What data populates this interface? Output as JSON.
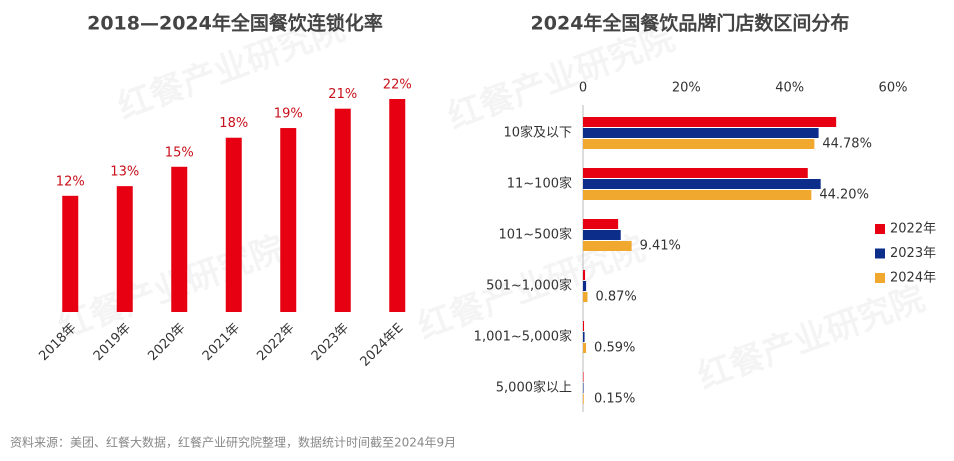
{
  "chart_data": [
    {
      "type": "bar",
      "title": "2018—2024年全国餐饮连锁化率",
      "categories": [
        "2018年",
        "2019年",
        "2020年",
        "2021年",
        "2022年",
        "2023年",
        "2024年E"
      ],
      "values": [
        12,
        13,
        15,
        18,
        19,
        21,
        22
      ],
      "value_labels": [
        "12%",
        "13%",
        "15%",
        "18%",
        "19%",
        "21%",
        "22%"
      ],
      "color": "#e60012"
    },
    {
      "type": "barh",
      "title": "2024年全国餐饮品牌门店数区间分布",
      "categories": [
        "10家及以下",
        "11~100家",
        "101~500家",
        "501~1,000家",
        "1,001~5,000家",
        "5,000家以上"
      ],
      "series": [
        {
          "name": "2022年",
          "color": "#e60012",
          "values": [
            49,
            43.5,
            6.8,
            0.4,
            0.2,
            0.1
          ]
        },
        {
          "name": "2023年",
          "color": "#0c2d8a",
          "values": [
            45.6,
            46,
            7.3,
            0.6,
            0.3,
            0.1
          ]
        },
        {
          "name": "2024年",
          "color": "#f0a92e",
          "values": [
            44.78,
            44.2,
            9.41,
            0.87,
            0.59,
            0.15
          ],
          "value_labels": [
            "44.78%",
            "44.20%",
            "9.41%",
            "0.87%",
            "0.59%",
            "0.15%"
          ]
        }
      ],
      "xlim": [
        0,
        60
      ],
      "xticks": [
        0,
        {
          "value": 20,
          "label": "20%"
        },
        {
          "value": 40,
          "label": "40%"
        },
        {
          "value": 60,
          "label": "60%"
        }
      ],
      "legend": "right"
    }
  ],
  "watermark": "红餐产业研究院",
  "source": "资料来源：美团、红餐大数据，红餐产业研究院整理，数据统计时间截至2024年9月"
}
